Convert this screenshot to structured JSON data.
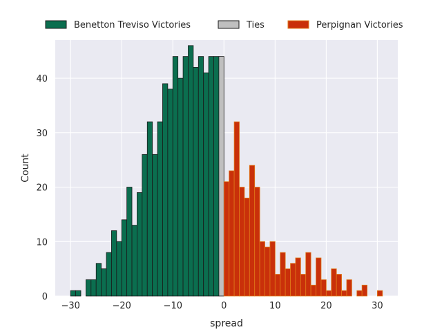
{
  "chart_data": {
    "type": "bar",
    "title": "",
    "xlabel": "spread",
    "ylabel": "Count",
    "xlim": [
      -33,
      34
    ],
    "ylim": [
      0,
      47
    ],
    "xticks": [
      -30,
      -20,
      -10,
      0,
      10,
      20,
      30
    ],
    "xtick_labels": [
      "−30",
      "−20",
      "−10",
      "0",
      "10",
      "20",
      "30"
    ],
    "yticks": [
      0,
      10,
      20,
      30,
      40
    ],
    "ytick_labels": [
      "0",
      "10",
      "20",
      "30",
      "40"
    ],
    "grid": true,
    "legend_position": "top",
    "series": [
      {
        "name": "Benetton Treviso Victories",
        "color": "#0b6e4f",
        "edgecolor": "#1a1a1a",
        "x": [
          -29.5,
          -28.5,
          -26.5,
          -25.5,
          -24.5,
          -23.5,
          -22.5,
          -21.5,
          -20.5,
          -19.5,
          -18.5,
          -17.5,
          -16.5,
          -15.5,
          -14.5,
          -13.5,
          -12.5,
          -11.5,
          -10.5,
          -9.5,
          -8.5,
          -7.5,
          -6.5,
          -5.5,
          -4.5,
          -3.5,
          -2.5,
          -1.5
        ],
        "values": [
          1,
          1,
          3,
          3,
          6,
          5,
          8,
          12,
          10,
          14,
          20,
          13,
          19,
          26,
          32,
          26,
          32,
          39,
          38,
          44,
          40,
          44,
          46,
          42,
          44,
          41,
          44,
          44
        ]
      },
      {
        "name": "Ties",
        "color": "#bfbfbf",
        "edgecolor": "#1a1a1a",
        "x": [
          -0.5
        ],
        "values": [
          44
        ]
      },
      {
        "name": "Perpignan Victories",
        "color": "#c9300a",
        "edgecolor": "#e07a1a",
        "x": [
          0.5,
          1.5,
          2.5,
          3.5,
          4.5,
          5.5,
          6.5,
          7.5,
          8.5,
          9.5,
          10.5,
          11.5,
          12.5,
          13.5,
          14.5,
          15.5,
          16.5,
          17.5,
          18.5,
          19.5,
          20.5,
          21.5,
          22.5,
          23.5,
          24.5,
          25.5,
          26.5,
          27.5,
          30.5
        ],
        "values": [
          21,
          23,
          32,
          20,
          18,
          24,
          20,
          10,
          9,
          10,
          4,
          8,
          5,
          6,
          7,
          4,
          8,
          2,
          7,
          3,
          1,
          5,
          4,
          1,
          3,
          0,
          1,
          2,
          1
        ]
      }
    ]
  }
}
